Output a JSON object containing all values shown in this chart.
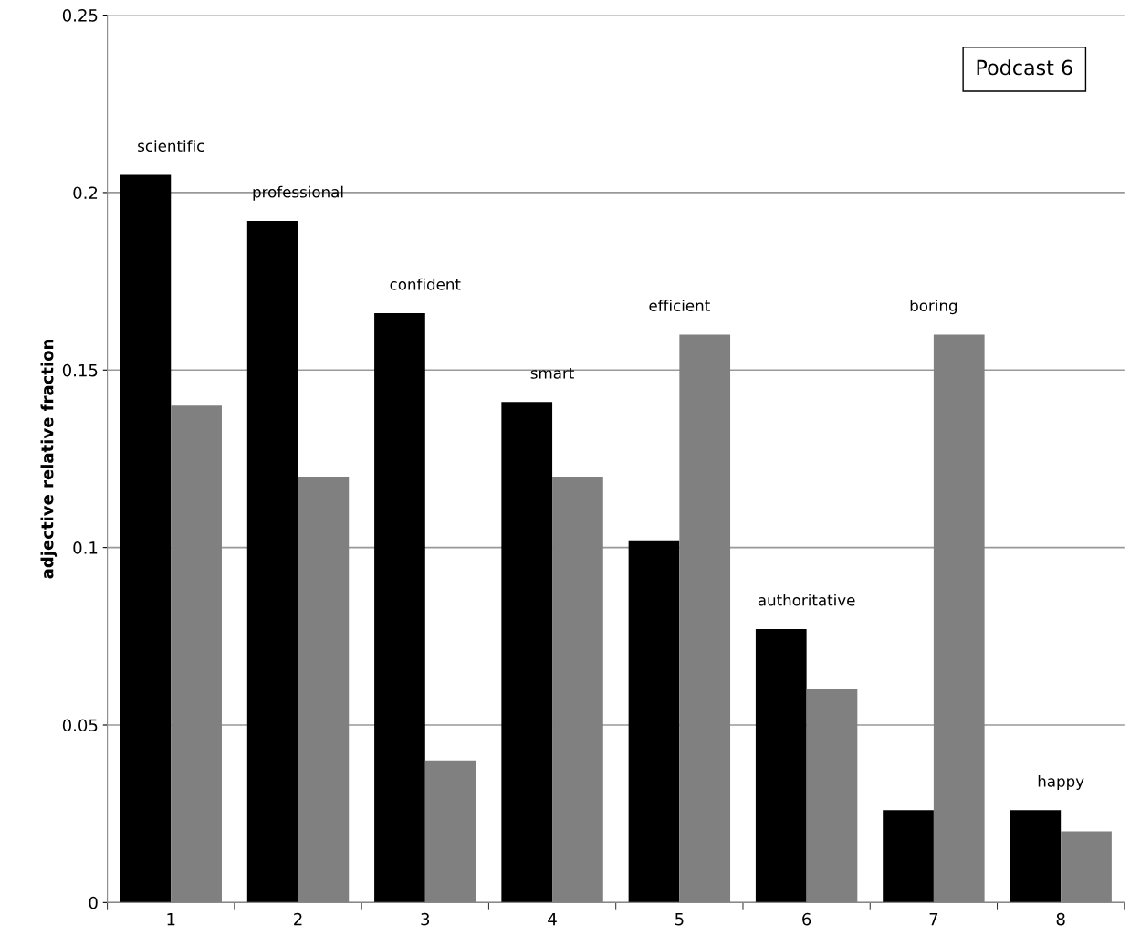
{
  "chart_data": {
    "type": "bar",
    "ylabel": "adjective relative fraction",
    "categories": [
      "1",
      "2",
      "3",
      "4",
      "5",
      "6",
      "7",
      "8"
    ],
    "series": [
      {
        "color": "#000000",
        "values": [
          0.205,
          0.192,
          0.166,
          0.141,
          0.102,
          0.077,
          0.026,
          0.026
        ]
      },
      {
        "color": "#808080",
        "values": [
          0.14,
          0.12,
          0.04,
          0.12,
          0.16,
          0.06,
          0.16,
          0.02
        ]
      }
    ],
    "ylim": [
      0,
      0.25
    ],
    "yticks": [
      0,
      0.05,
      0.1,
      0.15,
      0.2,
      0.25
    ],
    "grid": "y",
    "legend": false,
    "annotations": [
      {
        "text": "scientific",
        "x": "1",
        "y": 0.205
      },
      {
        "text": "professional",
        "x": "2",
        "y": 0.192
      },
      {
        "text": "confident",
        "x": "3",
        "y": 0.166
      },
      {
        "text": "smart",
        "x": "4",
        "y": 0.141
      },
      {
        "text": "efficient",
        "x": "5",
        "y": 0.16
      },
      {
        "text": "authoritative",
        "x": "6",
        "y": 0.077
      },
      {
        "text": "boring",
        "x": "7",
        "y": 0.16
      },
      {
        "text": "happy",
        "x": "8",
        "y": 0.026
      },
      "Podcast 6"
    ]
  }
}
